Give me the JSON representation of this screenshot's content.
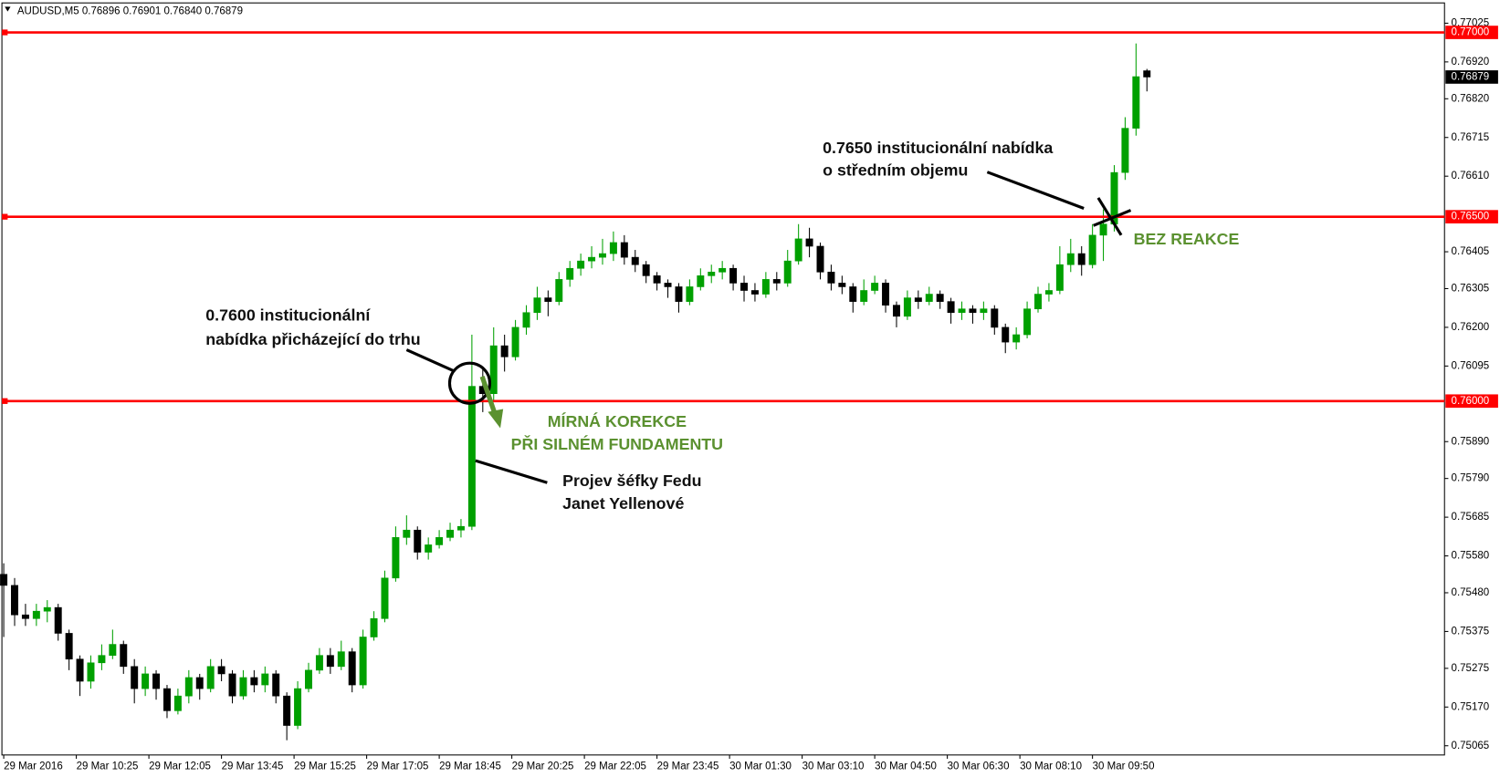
{
  "chart_data": {
    "type": "candlestick",
    "title": "AUDUSD,M5  0.76896 0.76901 0.76840 0.76879",
    "xlim": [
      -0.5,
      397
    ],
    "ylim": [
      0.7504,
      0.7708
    ],
    "xticks": [
      {
        "value": 0,
        "label": "29 Mar 2016"
      },
      {
        "value": 20,
        "label": "29 Mar 10:25"
      },
      {
        "value": 40,
        "label": "29 Mar 12:05"
      },
      {
        "value": 60,
        "label": "29 Mar 13:45"
      },
      {
        "value": 80,
        "label": "29 Mar 15:25"
      },
      {
        "value": 100,
        "label": "29 Mar 17:05"
      },
      {
        "value": 120,
        "label": "29 Mar 18:45"
      },
      {
        "value": 140,
        "label": "29 Mar 20:25"
      },
      {
        "value": 160,
        "label": "29 Mar 22:05"
      },
      {
        "value": 180,
        "label": "29 Mar 23:45"
      },
      {
        "value": 200,
        "label": "30 Mar 01:30"
      },
      {
        "value": 220,
        "label": "30 Mar 03:10"
      },
      {
        "value": 240,
        "label": "30 Mar 04:50"
      },
      {
        "value": 260,
        "label": "30 Mar 06:30"
      },
      {
        "value": 280,
        "label": "30 Mar 08:10"
      },
      {
        "value": 300,
        "label": "30 Mar 09:50"
      }
    ],
    "yticks": [
      {
        "value": 0.77025,
        "label": "0.77025"
      },
      {
        "value": 0.7692,
        "label": "0.76920"
      },
      {
        "value": 0.7682,
        "label": "0.76820"
      },
      {
        "value": 0.76715,
        "label": "0.76715"
      },
      {
        "value": 0.7661,
        "label": "0.76610"
      },
      {
        "value": 0.76405,
        "label": "0.76405"
      },
      {
        "value": 0.76305,
        "label": "0.76305"
      },
      {
        "value": 0.762,
        "label": "0.76200"
      },
      {
        "value": 0.76095,
        "label": "0.76095"
      },
      {
        "value": 0.7589,
        "label": "0.75890"
      },
      {
        "value": 0.7579,
        "label": "0.75790"
      },
      {
        "value": 0.75685,
        "label": "0.75685"
      },
      {
        "value": 0.7558,
        "label": "0.75580"
      },
      {
        "value": 0.7548,
        "label": "0.75480"
      },
      {
        "value": 0.75375,
        "label": "0.75375"
      },
      {
        "value": 0.75275,
        "label": "0.75275"
      },
      {
        "value": 0.7517,
        "label": "0.75170"
      },
      {
        "value": 0.75065,
        "label": "0.75065"
      }
    ],
    "levels": [
      {
        "value": 0.77,
        "label": "0.77000"
      },
      {
        "value": 0.765,
        "label": "0.76500"
      },
      {
        "value": 0.76,
        "label": "0.76000"
      }
    ],
    "level_color": "#ff0000",
    "last_price": 0.76879,
    "up_color": "#00a000",
    "down_color": "#000000",
    "annotations": [
      "0.7600 institucionální",
      "nabídka přicházející do trhu",
      "MÍRNÁ KOREKCE",
      "PŘI SILNÉM FUNDAMENTU",
      "Projev šéfky Fedu",
      "Janet Yellenové",
      "0.7650 institucionální nabídka",
      "o středním objemu",
      "BEZ REAKCE"
    ],
    "x": [
      0,
      3,
      6,
      9,
      12,
      15,
      18,
      21,
      24,
      27,
      30,
      33,
      36,
      39,
      42,
      45,
      48,
      51,
      54,
      57,
      60,
      63,
      66,
      69,
      72,
      75,
      78,
      81,
      84,
      87,
      90,
      93,
      96,
      99,
      102,
      105,
      108,
      111,
      114,
      117,
      120,
      123,
      126,
      129,
      132,
      135,
      138,
      141,
      144,
      147,
      150,
      153,
      156,
      159,
      162,
      165,
      168,
      171,
      174,
      177,
      180,
      183,
      186,
      189,
      192,
      195,
      198,
      201,
      204,
      207,
      210,
      213,
      216,
      219,
      222,
      225,
      228,
      231,
      234,
      237,
      240,
      243,
      246,
      249,
      252,
      255,
      258,
      261,
      264,
      267,
      270,
      273,
      276,
      279,
      282,
      285,
      288,
      291,
      294,
      297,
      300,
      303,
      306,
      309,
      312,
      315
    ],
    "ohlc": [
      [
        0.7553,
        0.7556,
        0.7536,
        0.755
      ],
      [
        0.755,
        0.7552,
        0.7539,
        0.7542
      ],
      [
        0.7542,
        0.7545,
        0.7539,
        0.7541
      ],
      [
        0.7541,
        0.7545,
        0.7539,
        0.7543
      ],
      [
        0.7543,
        0.7546,
        0.754,
        0.7544
      ],
      [
        0.7544,
        0.7545,
        0.7535,
        0.7537
      ],
      [
        0.7537,
        0.7538,
        0.7527,
        0.753
      ],
      [
        0.753,
        0.7531,
        0.752,
        0.7524
      ],
      [
        0.7524,
        0.7531,
        0.7522,
        0.7529
      ],
      [
        0.7529,
        0.7534,
        0.7527,
        0.7531
      ],
      [
        0.7531,
        0.7538,
        0.753,
        0.7534
      ],
      [
        0.7534,
        0.7535,
        0.7526,
        0.7528
      ],
      [
        0.7528,
        0.753,
        0.7518,
        0.7522
      ],
      [
        0.7522,
        0.7528,
        0.752,
        0.7526
      ],
      [
        0.7526,
        0.7527,
        0.7519,
        0.7522
      ],
      [
        0.7522,
        0.7523,
        0.7514,
        0.7516
      ],
      [
        0.7516,
        0.7522,
        0.7515,
        0.752
      ],
      [
        0.752,
        0.7527,
        0.7518,
        0.7525
      ],
      [
        0.7525,
        0.7526,
        0.7519,
        0.7522
      ],
      [
        0.7522,
        0.753,
        0.7521,
        0.7528
      ],
      [
        0.7528,
        0.753,
        0.7524,
        0.7526
      ],
      [
        0.7526,
        0.7527,
        0.7518,
        0.752
      ],
      [
        0.752,
        0.7527,
        0.7519,
        0.7525
      ],
      [
        0.7525,
        0.7527,
        0.7521,
        0.7523
      ],
      [
        0.7523,
        0.7528,
        0.7521,
        0.7526
      ],
      [
        0.7526,
        0.7527,
        0.7518,
        0.752
      ],
      [
        0.752,
        0.7521,
        0.7508,
        0.7512
      ],
      [
        0.7512,
        0.7524,
        0.7511,
        0.7522
      ],
      [
        0.7522,
        0.7529,
        0.7521,
        0.7527
      ],
      [
        0.7527,
        0.7533,
        0.7526,
        0.7531
      ],
      [
        0.7531,
        0.7533,
        0.7526,
        0.7528
      ],
      [
        0.7528,
        0.7535,
        0.7527,
        0.7532
      ],
      [
        0.7532,
        0.7533,
        0.7521,
        0.7523
      ],
      [
        0.7523,
        0.7538,
        0.7522,
        0.7536
      ],
      [
        0.7536,
        0.7543,
        0.7535,
        0.7541
      ],
      [
        0.7541,
        0.7554,
        0.754,
        0.7552
      ],
      [
        0.7552,
        0.7566,
        0.7551,
        0.7563
      ],
      [
        0.7563,
        0.7569,
        0.7561,
        0.7565
      ],
      [
        0.7565,
        0.7566,
        0.7557,
        0.7559
      ],
      [
        0.7559,
        0.7563,
        0.7557,
        0.7561
      ],
      [
        0.7561,
        0.7565,
        0.756,
        0.7563
      ],
      [
        0.7563,
        0.7567,
        0.7562,
        0.7565
      ],
      [
        0.7565,
        0.7568,
        0.7563,
        0.7566
      ],
      [
        0.7566,
        0.7618,
        0.7565,
        0.7604
      ],
      [
        0.7604,
        0.7609,
        0.7597,
        0.7602
      ],
      [
        0.7602,
        0.762,
        0.76,
        0.7615
      ],
      [
        0.7615,
        0.7618,
        0.7608,
        0.7612
      ],
      [
        0.7612,
        0.7622,
        0.7611,
        0.762
      ],
      [
        0.762,
        0.7626,
        0.7618,
        0.7624
      ],
      [
        0.7624,
        0.7631,
        0.7622,
        0.7628
      ],
      [
        0.7628,
        0.763,
        0.7623,
        0.7627
      ],
      [
        0.7627,
        0.7635,
        0.7626,
        0.7633
      ],
      [
        0.7633,
        0.7638,
        0.7631,
        0.7636
      ],
      [
        0.7636,
        0.764,
        0.7634,
        0.7638
      ],
      [
        0.7638,
        0.7642,
        0.7636,
        0.7639
      ],
      [
        0.7639,
        0.7644,
        0.7637,
        0.764
      ],
      [
        0.764,
        0.7646,
        0.7638,
        0.7643
      ],
      [
        0.7643,
        0.7645,
        0.7637,
        0.7639
      ],
      [
        0.7639,
        0.7641,
        0.7635,
        0.7637
      ],
      [
        0.7637,
        0.7638,
        0.7632,
        0.7634
      ],
      [
        0.7634,
        0.7635,
        0.763,
        0.7632
      ],
      [
        0.7632,
        0.7633,
        0.7628,
        0.7631
      ],
      [
        0.7631,
        0.7632,
        0.7624,
        0.7627
      ],
      [
        0.7627,
        0.7633,
        0.7626,
        0.7631
      ],
      [
        0.7631,
        0.7636,
        0.763,
        0.7634
      ],
      [
        0.7634,
        0.7637,
        0.7632,
        0.7635
      ],
      [
        0.7635,
        0.7638,
        0.7633,
        0.7636
      ],
      [
        0.7636,
        0.7637,
        0.763,
        0.7632
      ],
      [
        0.7632,
        0.7634,
        0.7627,
        0.763
      ],
      [
        0.763,
        0.7632,
        0.7627,
        0.7629
      ],
      [
        0.7629,
        0.7635,
        0.7628,
        0.7633
      ],
      [
        0.7633,
        0.7635,
        0.763,
        0.7632
      ],
      [
        0.7632,
        0.7641,
        0.7631,
        0.7638
      ],
      [
        0.7638,
        0.7648,
        0.7637,
        0.7644
      ],
      [
        0.7644,
        0.7647,
        0.7639,
        0.7642
      ],
      [
        0.7642,
        0.7643,
        0.7633,
        0.7635
      ],
      [
        0.7635,
        0.7637,
        0.763,
        0.7632
      ],
      [
        0.7632,
        0.7634,
        0.7629,
        0.7631
      ],
      [
        0.7631,
        0.7632,
        0.7624,
        0.7627
      ],
      [
        0.7627,
        0.7633,
        0.7626,
        0.763
      ],
      [
        0.763,
        0.7634,
        0.7629,
        0.7632
      ],
      [
        0.7632,
        0.7633,
        0.7624,
        0.7626
      ],
      [
        0.7626,
        0.7627,
        0.762,
        0.7623
      ],
      [
        0.7623,
        0.763,
        0.7622,
        0.7628
      ],
      [
        0.7628,
        0.763,
        0.7625,
        0.7627
      ],
      [
        0.7627,
        0.7631,
        0.7626,
        0.7629
      ],
      [
        0.7629,
        0.763,
        0.7625,
        0.7627
      ],
      [
        0.7627,
        0.7628,
        0.7621,
        0.7624
      ],
      [
        0.7624,
        0.7627,
        0.7622,
        0.7625
      ],
      [
        0.7625,
        0.7626,
        0.7621,
        0.7624
      ],
      [
        0.7624,
        0.7627,
        0.7622,
        0.7625
      ],
      [
        0.7625,
        0.7626,
        0.7618,
        0.762
      ],
      [
        0.762,
        0.7621,
        0.7613,
        0.7616
      ],
      [
        0.7616,
        0.762,
        0.7614,
        0.7618
      ],
      [
        0.7618,
        0.7627,
        0.7617,
        0.7625
      ],
      [
        0.7625,
        0.7631,
        0.7624,
        0.7629
      ],
      [
        0.7629,
        0.7632,
        0.7627,
        0.763
      ],
      [
        0.763,
        0.7642,
        0.7629,
        0.7637
      ],
      [
        0.7637,
        0.7644,
        0.7635,
        0.764
      ],
      [
        0.764,
        0.7642,
        0.7634,
        0.7637
      ],
      [
        0.7637,
        0.7648,
        0.7636,
        0.7645
      ],
      [
        0.7645,
        0.7652,
        0.7638,
        0.7648
      ],
      [
        0.7648,
        0.7664,
        0.7646,
        0.7662
      ],
      [
        0.7662,
        0.7677,
        0.766,
        0.7674
      ],
      [
        0.7674,
        0.7697,
        0.7672,
        0.7688
      ],
      [
        0.76896,
        0.76901,
        0.7684,
        0.76879
      ]
    ]
  }
}
